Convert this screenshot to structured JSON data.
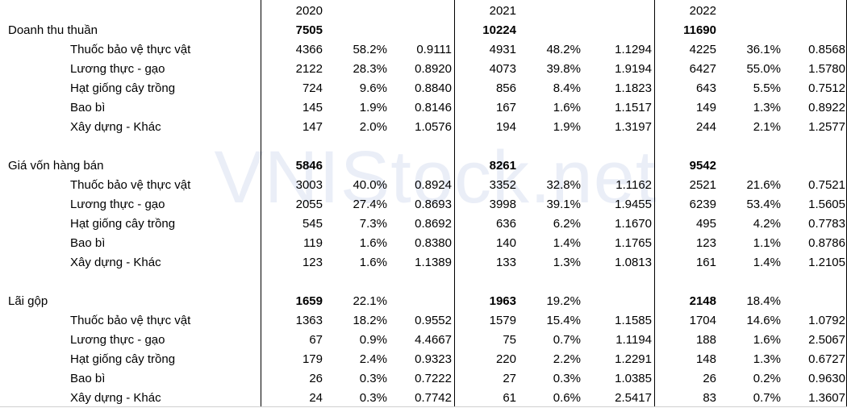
{
  "watermark": "VNIStock.net",
  "years": [
    "2020",
    "2021",
    "2022"
  ],
  "rows": [
    {
      "label": "Doanh thu thuần",
      "bold": true,
      "sub": false,
      "cells": [
        [
          "7505",
          "",
          ""
        ],
        [
          "10224",
          "",
          ""
        ],
        [
          "11690",
          "",
          ""
        ]
      ]
    },
    {
      "label": "Thuốc bảo vệ thực vật",
      "bold": false,
      "sub": true,
      "cells": [
        [
          "4366",
          "58.2%",
          "0.9111"
        ],
        [
          "4931",
          "48.2%",
          "1.1294"
        ],
        [
          "4225",
          "36.1%",
          "0.8568"
        ]
      ]
    },
    {
      "label": "Lương thực - gạo",
      "bold": false,
      "sub": true,
      "cells": [
        [
          "2122",
          "28.3%",
          "0.8920"
        ],
        [
          "4073",
          "39.8%",
          "1.9194"
        ],
        [
          "6427",
          "55.0%",
          "1.5780"
        ]
      ]
    },
    {
      "label": "Hạt giống cây trồng",
      "bold": false,
      "sub": true,
      "cells": [
        [
          "724",
          "9.6%",
          "0.8840"
        ],
        [
          "856",
          "8.4%",
          "1.1823"
        ],
        [
          "643",
          "5.5%",
          "0.7512"
        ]
      ]
    },
    {
      "label": "Bao bì",
      "bold": false,
      "sub": true,
      "cells": [
        [
          "145",
          "1.9%",
          "0.8146"
        ],
        [
          "167",
          "1.6%",
          "1.1517"
        ],
        [
          "149",
          "1.3%",
          "0.8922"
        ]
      ]
    },
    {
      "label": "Xây dựng - Khác",
      "bold": false,
      "sub": true,
      "cells": [
        [
          "147",
          "2.0%",
          "1.0576"
        ],
        [
          "194",
          "1.9%",
          "1.3197"
        ],
        [
          "244",
          "2.1%",
          "1.2577"
        ]
      ]
    },
    {
      "label": "",
      "bold": false,
      "sub": false,
      "cells": [
        [
          "",
          "",
          ""
        ],
        [
          "",
          "",
          ""
        ],
        [
          "",
          "",
          ""
        ]
      ]
    },
    {
      "label": "Giá vốn hàng bán",
      "bold": true,
      "sub": false,
      "cells": [
        [
          "5846",
          "",
          ""
        ],
        [
          "8261",
          "",
          ""
        ],
        [
          "9542",
          "",
          ""
        ]
      ]
    },
    {
      "label": "Thuốc bảo vệ thực vật",
      "bold": false,
      "sub": true,
      "cells": [
        [
          "3003",
          "40.0%",
          "0.8924"
        ],
        [
          "3352",
          "32.8%",
          "1.1162"
        ],
        [
          "2521",
          "21.6%",
          "0.7521"
        ]
      ]
    },
    {
      "label": "Lương thực - gạo",
      "bold": false,
      "sub": true,
      "cells": [
        [
          "2055",
          "27.4%",
          "0.8693"
        ],
        [
          "3998",
          "39.1%",
          "1.9455"
        ],
        [
          "6239",
          "53.4%",
          "1.5605"
        ]
      ]
    },
    {
      "label": "Hạt giống cây trồng",
      "bold": false,
      "sub": true,
      "cells": [
        [
          "545",
          "7.3%",
          "0.8692"
        ],
        [
          "636",
          "6.2%",
          "1.1670"
        ],
        [
          "495",
          "4.2%",
          "0.7783"
        ]
      ]
    },
    {
      "label": "Bao bì",
      "bold": false,
      "sub": true,
      "cells": [
        [
          "119",
          "1.6%",
          "0.8380"
        ],
        [
          "140",
          "1.4%",
          "1.1765"
        ],
        [
          "123",
          "1.1%",
          "0.8786"
        ]
      ]
    },
    {
      "label": "Xây dựng - Khác",
      "bold": false,
      "sub": true,
      "cells": [
        [
          "123",
          "1.6%",
          "1.1389"
        ],
        [
          "133",
          "1.3%",
          "1.0813"
        ],
        [
          "161",
          "1.4%",
          "1.2105"
        ]
      ]
    },
    {
      "label": "",
      "bold": false,
      "sub": false,
      "cells": [
        [
          "",
          "",
          ""
        ],
        [
          "",
          "",
          ""
        ],
        [
          "",
          "",
          ""
        ]
      ]
    },
    {
      "label": "Lãi gộp",
      "bold": true,
      "sub": false,
      "cells": [
        [
          "1659",
          "22.1%",
          ""
        ],
        [
          "1963",
          "19.2%",
          ""
        ],
        [
          "2148",
          "18.4%",
          ""
        ]
      ]
    },
    {
      "label": "Thuốc bảo vệ thực vật",
      "bold": false,
      "sub": true,
      "cells": [
        [
          "1363",
          "18.2%",
          "0.9552"
        ],
        [
          "1579",
          "15.4%",
          "1.1585"
        ],
        [
          "1704",
          "14.6%",
          "1.0792"
        ]
      ]
    },
    {
      "label": "Lương thực - gạo",
      "bold": false,
      "sub": true,
      "cells": [
        [
          "67",
          "0.9%",
          "4.4667"
        ],
        [
          "75",
          "0.7%",
          "1.1194"
        ],
        [
          "188",
          "1.6%",
          "2.5067"
        ]
      ]
    },
    {
      "label": "Hạt giống cây trồng",
      "bold": false,
      "sub": true,
      "cells": [
        [
          "179",
          "2.4%",
          "0.9323"
        ],
        [
          "220",
          "2.2%",
          "1.2291"
        ],
        [
          "148",
          "1.3%",
          "0.6727"
        ]
      ]
    },
    {
      "label": "Bao bì",
      "bold": false,
      "sub": true,
      "cells": [
        [
          "26",
          "0.3%",
          "0.7222"
        ],
        [
          "27",
          "0.3%",
          "1.0385"
        ],
        [
          "26",
          "0.2%",
          "0.9630"
        ]
      ]
    },
    {
      "label": "Xây dựng - Khác",
      "bold": false,
      "sub": true,
      "cells": [
        [
          "24",
          "0.3%",
          "0.7742"
        ],
        [
          "61",
          "0.6%",
          "2.5417"
        ],
        [
          "83",
          "0.7%",
          "1.3607"
        ]
      ]
    }
  ]
}
